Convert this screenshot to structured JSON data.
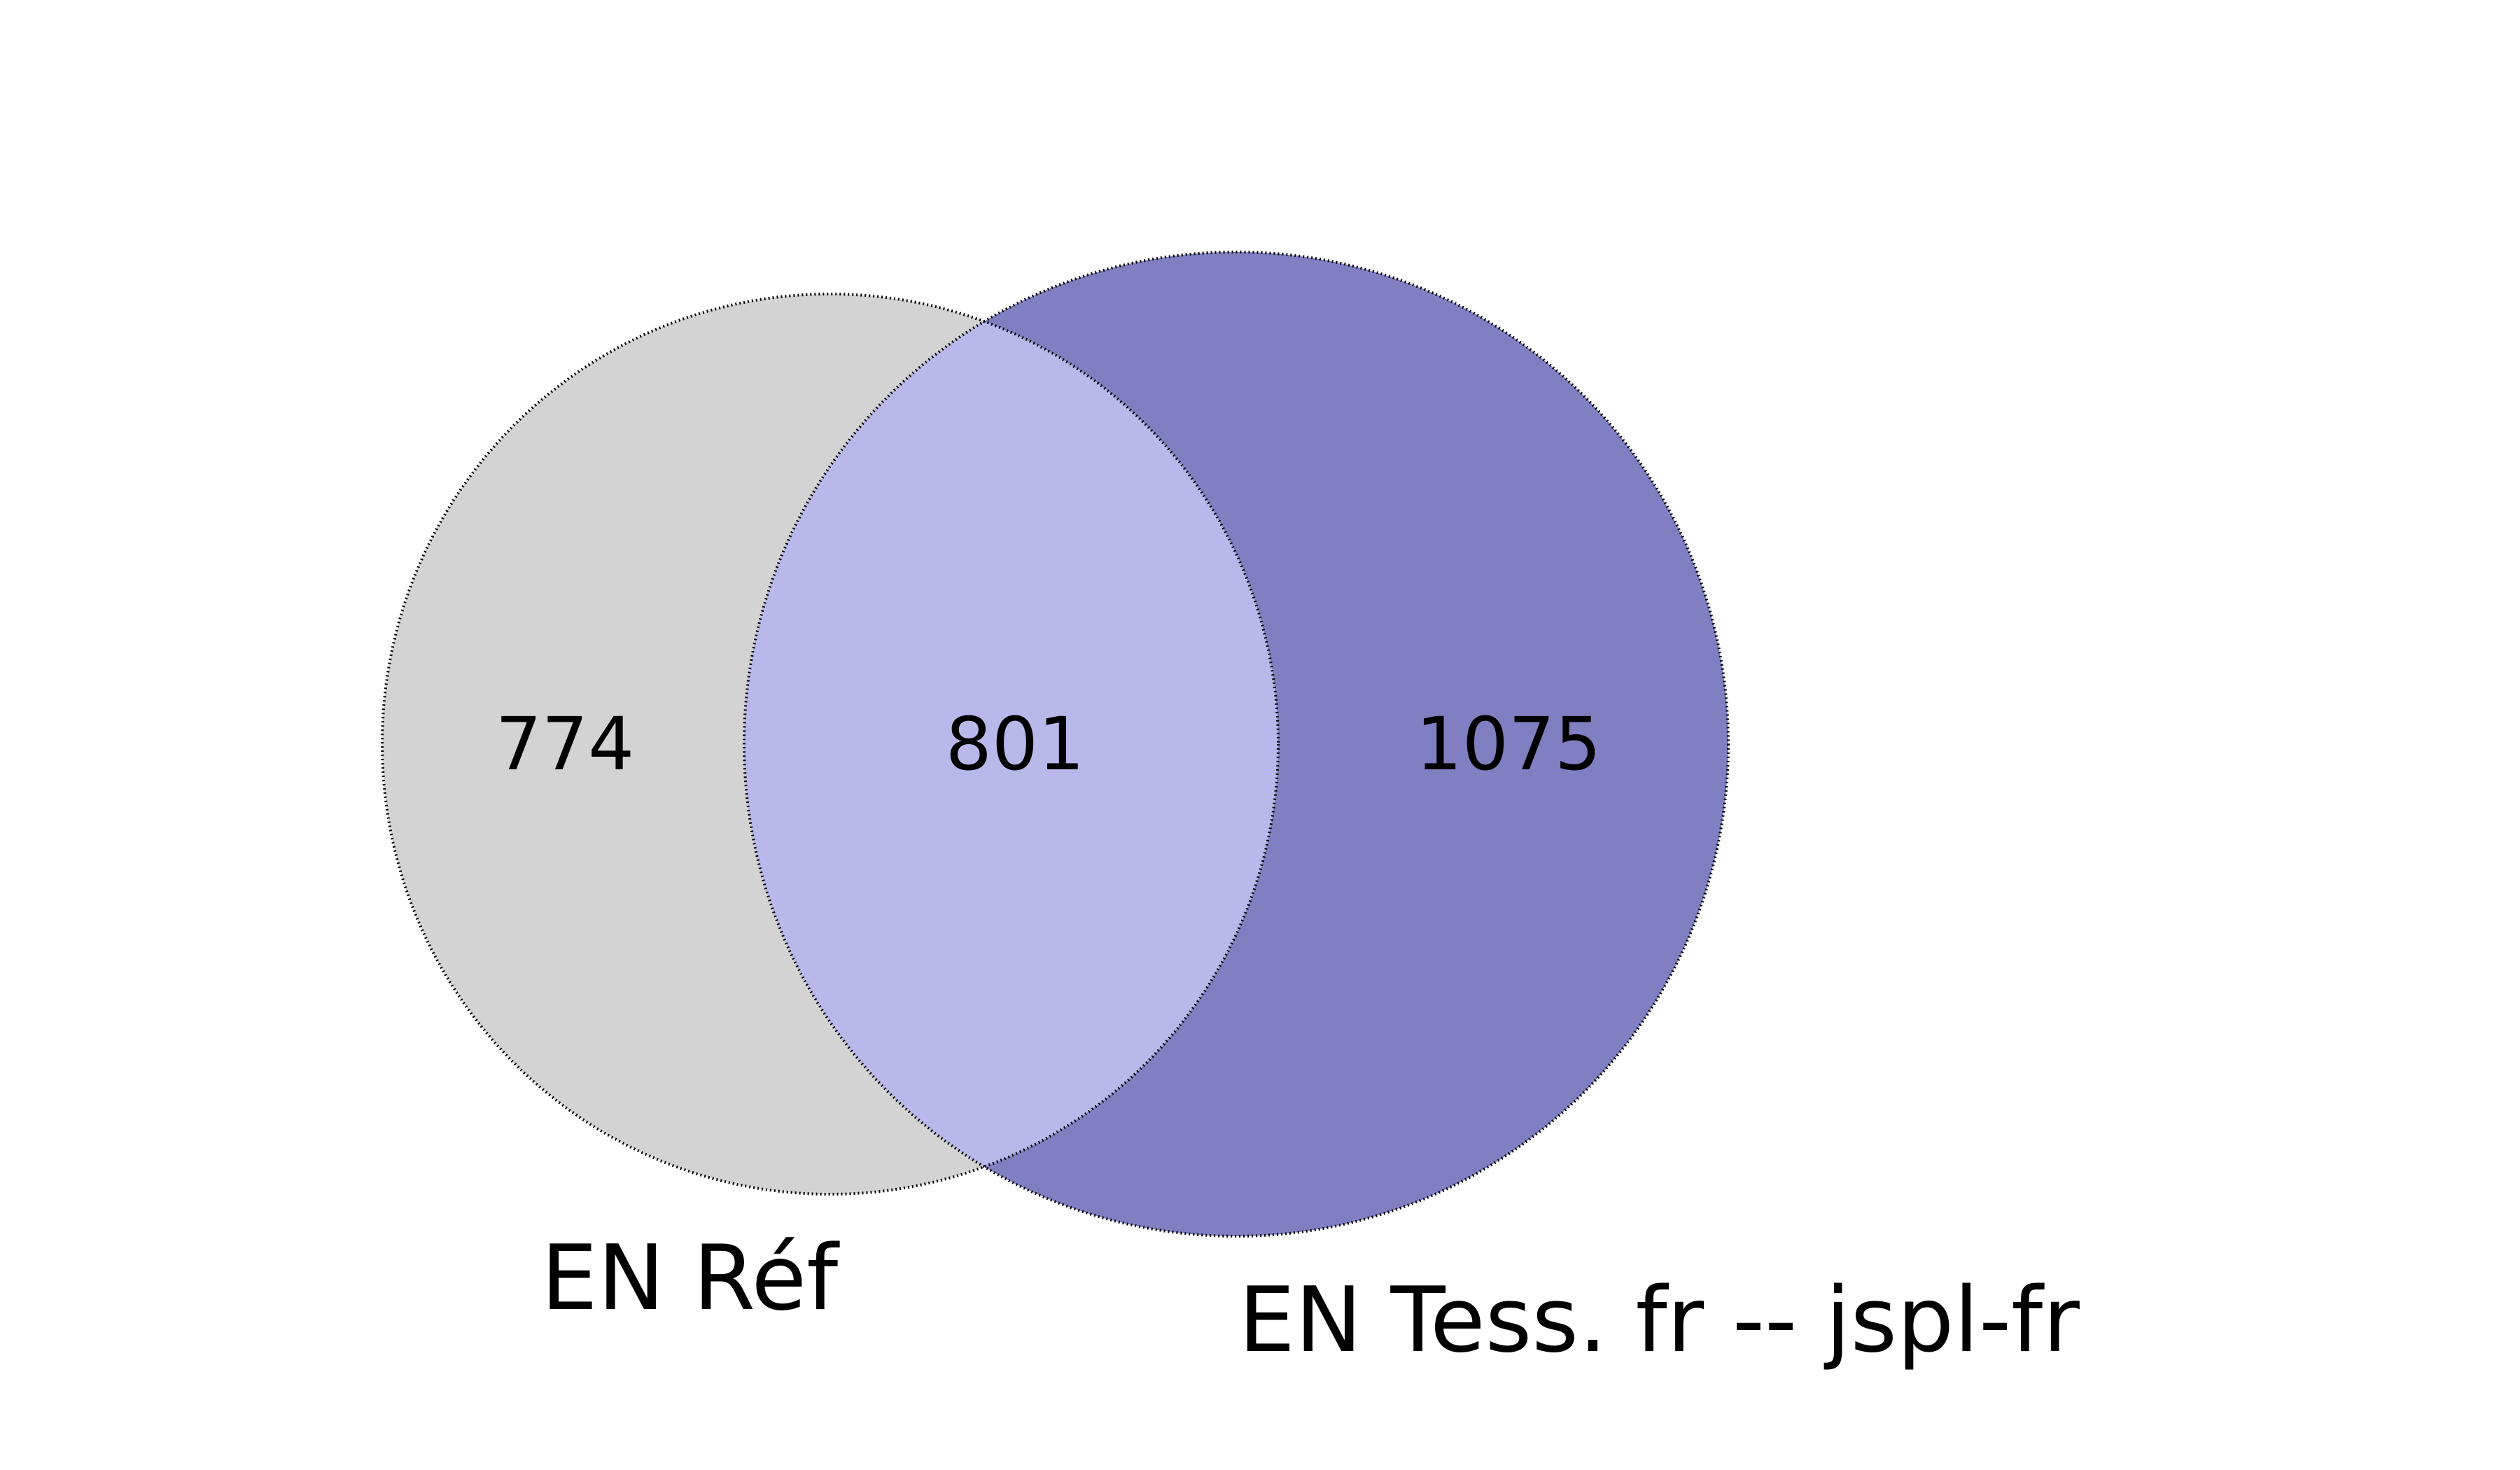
{
  "venn": {
    "sets": [
      {
        "name": "EN Réf",
        "only_count": "774",
        "color": "#d3d3d3"
      },
      {
        "name": "EN Tess. fr -- jspl-fr",
        "only_count": "1075",
        "color": "#7f7fc1"
      }
    ],
    "intersection": {
      "count": "801",
      "color": "#b8b9ea"
    }
  }
}
